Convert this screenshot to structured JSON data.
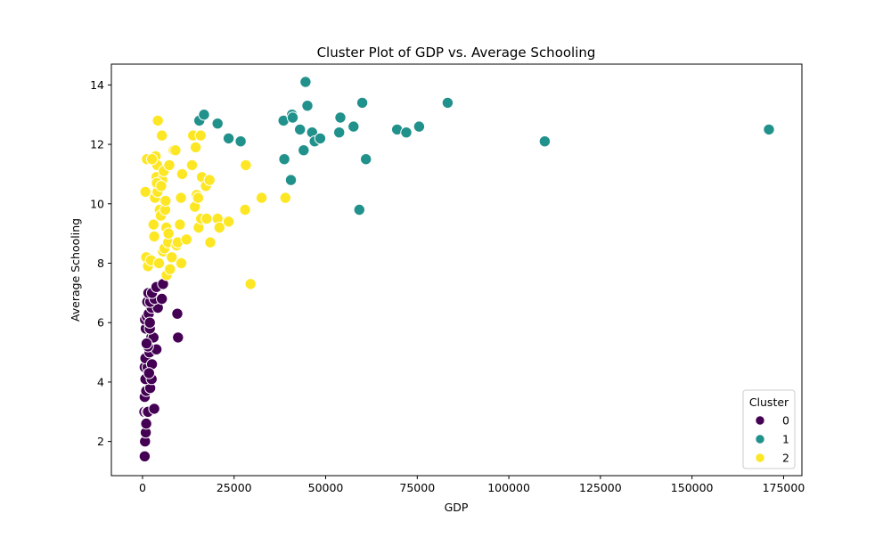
{
  "chart_data": {
    "type": "scatter",
    "title": "Cluster Plot of GDP vs. Average Schooling",
    "xlabel": "GDP",
    "ylabel": "Average Schooling",
    "xlim": [
      -8500,
      180000
    ],
    "ylim": [
      0.85,
      14.7
    ],
    "xticks": [
      0,
      25000,
      50000,
      75000,
      100000,
      125000,
      150000,
      175000
    ],
    "yticks": [
      2,
      4,
      6,
      8,
      10,
      12,
      14
    ],
    "grid": false,
    "legend": {
      "title": "Cluster",
      "placement": "lower-right"
    },
    "series": [
      {
        "name": "0",
        "color": "#440154",
        "points": [
          [
            600,
            1.5
          ],
          [
            700,
            2.0
          ],
          [
            900,
            2.3
          ],
          [
            1000,
            2.6
          ],
          [
            500,
            3.0
          ],
          [
            1200,
            3.0
          ],
          [
            1500,
            3.0
          ],
          [
            3200,
            3.1
          ],
          [
            600,
            3.5
          ],
          [
            1000,
            3.7
          ],
          [
            2100,
            3.8
          ],
          [
            800,
            4.1
          ],
          [
            2500,
            4.1
          ],
          [
            600,
            4.5
          ],
          [
            1400,
            4.5
          ],
          [
            800,
            4.8
          ],
          [
            2600,
            4.6
          ],
          [
            1900,
            5.0
          ],
          [
            3800,
            5.1
          ],
          [
            1500,
            5.2
          ],
          [
            2400,
            5.5
          ],
          [
            3000,
            5.5
          ],
          [
            9700,
            5.5
          ],
          [
            900,
            5.8
          ],
          [
            2000,
            5.8
          ],
          [
            700,
            6.1
          ],
          [
            1200,
            6.2
          ],
          [
            1700,
            6.3
          ],
          [
            2500,
            6.5
          ],
          [
            4200,
            6.5
          ],
          [
            9500,
            6.3
          ],
          [
            1300,
            6.7
          ],
          [
            2100,
            6.7
          ],
          [
            3300,
            6.8
          ],
          [
            5300,
            6.8
          ],
          [
            1600,
            7.0
          ],
          [
            2600,
            7.0
          ],
          [
            3800,
            7.2
          ],
          [
            5600,
            7.3
          ],
          [
            2000,
            6.0
          ],
          [
            1100,
            5.3
          ],
          [
            1800,
            4.3
          ]
        ]
      },
      {
        "name": "1",
        "color": "#21918c",
        "points": [
          [
            15500,
            12.8
          ],
          [
            16800,
            13.0
          ],
          [
            20500,
            12.7
          ],
          [
            23500,
            12.2
          ],
          [
            26800,
            12.1
          ],
          [
            38500,
            12.8
          ],
          [
            38700,
            11.5
          ],
          [
            40500,
            10.8
          ],
          [
            40800,
            13.0
          ],
          [
            41000,
            12.9
          ],
          [
            43000,
            12.5
          ],
          [
            44000,
            11.8
          ],
          [
            44500,
            14.1
          ],
          [
            45000,
            13.3
          ],
          [
            46300,
            12.4
          ],
          [
            47000,
            12.1
          ],
          [
            48500,
            12.2
          ],
          [
            53700,
            12.4
          ],
          [
            54000,
            12.9
          ],
          [
            57600,
            12.6
          ],
          [
            59200,
            9.8
          ],
          [
            60000,
            13.4
          ],
          [
            61000,
            11.5
          ],
          [
            69500,
            12.5
          ],
          [
            72000,
            12.4
          ],
          [
            75500,
            12.6
          ],
          [
            83300,
            13.4
          ],
          [
            109800,
            12.1
          ],
          [
            171000,
            12.5
          ]
        ]
      },
      {
        "name": "2",
        "color": "#fde725",
        "points": [
          [
            800,
            10.4
          ],
          [
            1200,
            11.5
          ],
          [
            1000,
            8.2
          ],
          [
            1500,
            7.9
          ],
          [
            2300,
            8.1
          ],
          [
            3000,
            9.3
          ],
          [
            3200,
            8.9
          ],
          [
            3400,
            10.2
          ],
          [
            3600,
            11.6
          ],
          [
            3800,
            10.9
          ],
          [
            4000,
            11.3
          ],
          [
            4100,
            10.4
          ],
          [
            4200,
            12.8
          ],
          [
            4500,
            8.0
          ],
          [
            4700,
            9.8
          ],
          [
            5000,
            9.6
          ],
          [
            5300,
            12.3
          ],
          [
            5400,
            10.8
          ],
          [
            5600,
            8.4
          ],
          [
            5800,
            11.1
          ],
          [
            6000,
            8.5
          ],
          [
            6200,
            9.8
          ],
          [
            6300,
            10.1
          ],
          [
            6500,
            9.2
          ],
          [
            6600,
            7.6
          ],
          [
            7000,
            8.7
          ],
          [
            7300,
            11.3
          ],
          [
            7500,
            7.8
          ],
          [
            8000,
            8.2
          ],
          [
            8500,
            11.8
          ],
          [
            9000,
            11.8
          ],
          [
            9300,
            8.6
          ],
          [
            9600,
            8.7
          ],
          [
            10200,
            9.3
          ],
          [
            10500,
            10.2
          ],
          [
            10800,
            11.0
          ],
          [
            10600,
            8.0
          ],
          [
            12000,
            8.8
          ],
          [
            13500,
            11.3
          ],
          [
            13800,
            12.3
          ],
          [
            14300,
            9.9
          ],
          [
            14500,
            11.9
          ],
          [
            14800,
            10.3
          ],
          [
            15200,
            10.2
          ],
          [
            15300,
            9.2
          ],
          [
            15900,
            12.3
          ],
          [
            16000,
            9.5
          ],
          [
            16200,
            10.9
          ],
          [
            17300,
            10.6
          ],
          [
            17500,
            9.5
          ],
          [
            18300,
            10.8
          ],
          [
            18500,
            8.7
          ],
          [
            20500,
            9.5
          ],
          [
            21000,
            9.2
          ],
          [
            23500,
            9.4
          ],
          [
            28000,
            9.8
          ],
          [
            28200,
            11.3
          ],
          [
            29500,
            7.3
          ],
          [
            32500,
            10.2
          ],
          [
            39000,
            10.2
          ],
          [
            2600,
            11.5
          ],
          [
            3900,
            10.7
          ],
          [
            5100,
            10.6
          ],
          [
            7100,
            9.0
          ]
        ]
      }
    ]
  }
}
